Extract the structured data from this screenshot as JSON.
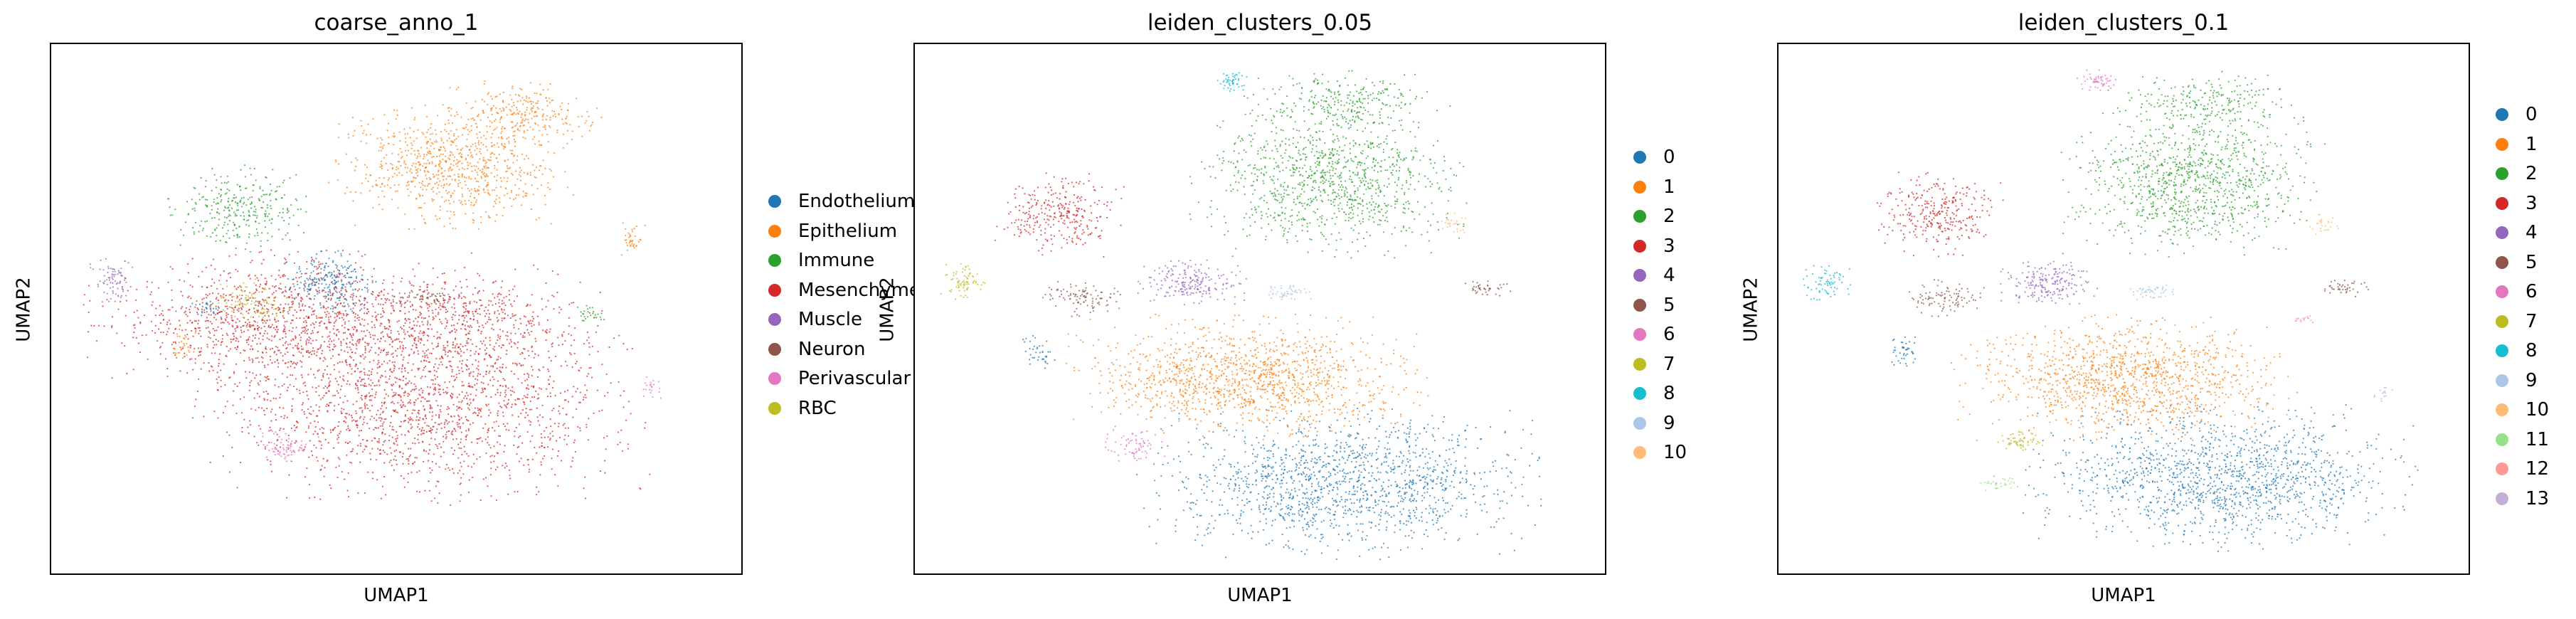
{
  "panels": [
    {
      "title": "coarse_anno_1",
      "xlabel": "UMAP1",
      "ylabel": "UMAP2",
      "legend": [
        {
          "label": "Endothelium",
          "color": "#1f77b4"
        },
        {
          "label": "Epithelium",
          "color": "#ff7f0e"
        },
        {
          "label": "Immune",
          "color": "#2ca02c"
        },
        {
          "label": "Mesenchyme",
          "color": "#d62728"
        },
        {
          "label": "Muscle",
          "color": "#9467bd"
        },
        {
          "label": "Neuron",
          "color": "#8c564b"
        },
        {
          "label": "Perivascular",
          "color": "#e377c2"
        },
        {
          "label": "RBC",
          "color": "#bcbd22"
        }
      ]
    },
    {
      "title": "leiden_clusters_0.05",
      "xlabel": "UMAP1",
      "ylabel": "UMAP2",
      "legend": [
        {
          "label": "0",
          "color": "#1f77b4"
        },
        {
          "label": "1",
          "color": "#ff7f0e"
        },
        {
          "label": "2",
          "color": "#2ca02c"
        },
        {
          "label": "3",
          "color": "#d62728"
        },
        {
          "label": "4",
          "color": "#9467bd"
        },
        {
          "label": "5",
          "color": "#8c564b"
        },
        {
          "label": "6",
          "color": "#e377c2"
        },
        {
          "label": "7",
          "color": "#bcbd22"
        },
        {
          "label": "8",
          "color": "#17becf"
        },
        {
          "label": "9",
          "color": "#aec7e8"
        },
        {
          "label": "10",
          "color": "#ffbb78"
        }
      ]
    },
    {
      "title": "leiden_clusters_0.1",
      "xlabel": "UMAP1",
      "ylabel": "UMAP2",
      "legend": [
        {
          "label": "0",
          "color": "#1f77b4"
        },
        {
          "label": "1",
          "color": "#ff7f0e"
        },
        {
          "label": "2",
          "color": "#2ca02c"
        },
        {
          "label": "3",
          "color": "#d62728"
        },
        {
          "label": "4",
          "color": "#9467bd"
        },
        {
          "label": "5",
          "color": "#8c564b"
        },
        {
          "label": "6",
          "color": "#e377c2"
        },
        {
          "label": "7",
          "color": "#bcbd22"
        },
        {
          "label": "8",
          "color": "#17becf"
        },
        {
          "label": "9",
          "color": "#aec7e8"
        },
        {
          "label": "10",
          "color": "#ffbb78"
        },
        {
          "label": "11",
          "color": "#98df8a"
        },
        {
          "label": "12",
          "color": "#ff9896"
        },
        {
          "label": "13",
          "color": "#c5b0d5"
        }
      ]
    }
  ],
  "chart_data": [
    {
      "type": "scatter",
      "title": "coarse_anno_1",
      "xlabel": "UMAP1",
      "ylabel": "UMAP2",
      "grid": false,
      "axis_ticks": false,
      "legend_position": "right-outside",
      "clusters": [
        {
          "name": "Mesenchyme",
          "color": "#d62728",
          "cx": 0.54,
          "cy": 0.32,
          "rx": 0.28,
          "ry": 0.16,
          "density": 5200
        },
        {
          "name": "Mesenchyme",
          "color": "#d62728",
          "cx": 0.33,
          "cy": 0.48,
          "rx": 0.24,
          "ry": 0.11,
          "density": 3600
        },
        {
          "name": "Mesenchyme",
          "color": "#d62728",
          "cx": 0.6,
          "cy": 0.48,
          "rx": 0.17,
          "ry": 0.09,
          "density": 1500
        },
        {
          "name": "Epithelium",
          "color": "#ff7f0e",
          "cx": 0.58,
          "cy": 0.77,
          "rx": 0.15,
          "ry": 0.1,
          "density": 2400
        },
        {
          "name": "Epithelium",
          "color": "#ff7f0e",
          "cx": 0.68,
          "cy": 0.87,
          "rx": 0.1,
          "ry": 0.05,
          "density": 700
        },
        {
          "name": "Epithelium",
          "color": "#ff7f0e",
          "cx": 0.84,
          "cy": 0.63,
          "rx": 0.02,
          "ry": 0.03,
          "density": 110
        },
        {
          "name": "Epithelium",
          "color": "#ff7f0e",
          "cx": 0.19,
          "cy": 0.43,
          "rx": 0.02,
          "ry": 0.03,
          "density": 90
        },
        {
          "name": "Immune",
          "color": "#2ca02c",
          "cx": 0.27,
          "cy": 0.69,
          "rx": 0.09,
          "ry": 0.07,
          "density": 900
        },
        {
          "name": "Immune",
          "color": "#2ca02c",
          "cx": 0.78,
          "cy": 0.49,
          "rx": 0.02,
          "ry": 0.015,
          "density": 80
        },
        {
          "name": "Endothelium",
          "color": "#1f77b4",
          "cx": 0.4,
          "cy": 0.55,
          "rx": 0.06,
          "ry": 0.05,
          "density": 700
        },
        {
          "name": "Muscle",
          "color": "#9467bd",
          "cx": 0.09,
          "cy": 0.55,
          "rx": 0.03,
          "ry": 0.04,
          "density": 220
        },
        {
          "name": "Neuron",
          "color": "#8c564b",
          "cx": 0.55,
          "cy": 0.52,
          "rx": 0.05,
          "ry": 0.015,
          "density": 200
        },
        {
          "name": "Perivascular",
          "color": "#e377c2",
          "cx": 0.34,
          "cy": 0.24,
          "rx": 0.04,
          "ry": 0.025,
          "density": 220
        },
        {
          "name": "Perivascular",
          "color": "#e377c2",
          "cx": 0.87,
          "cy": 0.35,
          "rx": 0.015,
          "ry": 0.02,
          "density": 60
        },
        {
          "name": "RBC",
          "color": "#bcbd22",
          "cx": 0.29,
          "cy": 0.51,
          "rx": 0.05,
          "ry": 0.04,
          "density": 300
        },
        {
          "name": "Endothelium",
          "color": "#1f77b4",
          "cx": 0.23,
          "cy": 0.5,
          "rx": 0.03,
          "ry": 0.015,
          "density": 80
        }
      ]
    },
    {
      "type": "scatter",
      "title": "leiden_clusters_0.05",
      "xlabel": "UMAP1",
      "ylabel": "UMAP2",
      "grid": false,
      "axis_ticks": false,
      "legend_position": "right-outside",
      "clusters": [
        {
          "name": "0",
          "color": "#1f77b4",
          "cx": 0.62,
          "cy": 0.17,
          "rx": 0.25,
          "ry": 0.12,
          "density": 4200
        },
        {
          "name": "1",
          "color": "#ff7f0e",
          "cx": 0.48,
          "cy": 0.37,
          "rx": 0.22,
          "ry": 0.1,
          "density": 3800
        },
        {
          "name": "2",
          "color": "#2ca02c",
          "cx": 0.6,
          "cy": 0.74,
          "rx": 0.17,
          "ry": 0.12,
          "density": 3000
        },
        {
          "name": "2",
          "color": "#2ca02c",
          "cx": 0.62,
          "cy": 0.89,
          "rx": 0.12,
          "ry": 0.05,
          "density": 800
        },
        {
          "name": "3",
          "color": "#d62728",
          "cx": 0.21,
          "cy": 0.68,
          "rx": 0.08,
          "ry": 0.07,
          "density": 900
        },
        {
          "name": "4",
          "color": "#9467bd",
          "cx": 0.4,
          "cy": 0.55,
          "rx": 0.07,
          "ry": 0.04,
          "density": 600
        },
        {
          "name": "5",
          "color": "#8c564b",
          "cx": 0.24,
          "cy": 0.52,
          "rx": 0.05,
          "ry": 0.03,
          "density": 300
        },
        {
          "name": "5",
          "color": "#8c564b",
          "cx": 0.83,
          "cy": 0.54,
          "rx": 0.03,
          "ry": 0.015,
          "density": 120
        },
        {
          "name": "6",
          "color": "#e377c2",
          "cx": 0.32,
          "cy": 0.24,
          "rx": 0.04,
          "ry": 0.025,
          "density": 200
        },
        {
          "name": "7",
          "color": "#bcbd22",
          "cx": 0.07,
          "cy": 0.55,
          "rx": 0.03,
          "ry": 0.03,
          "density": 220
        },
        {
          "name": "8",
          "color": "#17becf",
          "cx": 0.46,
          "cy": 0.93,
          "rx": 0.02,
          "ry": 0.02,
          "density": 150
        },
        {
          "name": "9",
          "color": "#aec7e8",
          "cx": 0.54,
          "cy": 0.53,
          "rx": 0.03,
          "ry": 0.015,
          "density": 150
        },
        {
          "name": "10",
          "color": "#ffbb78",
          "cx": 0.78,
          "cy": 0.66,
          "rx": 0.02,
          "ry": 0.02,
          "density": 80
        },
        {
          "name": "0",
          "color": "#1f77b4",
          "cx": 0.18,
          "cy": 0.42,
          "rx": 0.02,
          "ry": 0.03,
          "density": 120
        }
      ]
    },
    {
      "type": "scatter",
      "title": "leiden_clusters_0.1",
      "xlabel": "UMAP1",
      "ylabel": "UMAP2",
      "grid": false,
      "axis_ticks": false,
      "legend_position": "right-outside",
      "clusters": [
        {
          "name": "0",
          "color": "#1f77b4",
          "cx": 0.64,
          "cy": 0.18,
          "rx": 0.24,
          "ry": 0.12,
          "density": 4200
        },
        {
          "name": "1",
          "color": "#ff7f0e",
          "cx": 0.5,
          "cy": 0.37,
          "rx": 0.21,
          "ry": 0.1,
          "density": 3600
        },
        {
          "name": "2",
          "color": "#2ca02c",
          "cx": 0.6,
          "cy": 0.74,
          "rx": 0.16,
          "ry": 0.12,
          "density": 3000
        },
        {
          "name": "2",
          "color": "#2ca02c",
          "cx": 0.62,
          "cy": 0.89,
          "rx": 0.12,
          "ry": 0.05,
          "density": 700
        },
        {
          "name": "3",
          "color": "#d62728",
          "cx": 0.23,
          "cy": 0.68,
          "rx": 0.08,
          "ry": 0.07,
          "density": 900
        },
        {
          "name": "4",
          "color": "#9467bd",
          "cx": 0.39,
          "cy": 0.55,
          "rx": 0.06,
          "ry": 0.04,
          "density": 600
        },
        {
          "name": "5",
          "color": "#8c564b",
          "cx": 0.24,
          "cy": 0.52,
          "rx": 0.05,
          "ry": 0.03,
          "density": 280
        },
        {
          "name": "5",
          "color": "#8c564b",
          "cx": 0.82,
          "cy": 0.54,
          "rx": 0.03,
          "ry": 0.015,
          "density": 120
        },
        {
          "name": "6",
          "color": "#e377c2",
          "cx": 0.46,
          "cy": 0.93,
          "rx": 0.025,
          "ry": 0.02,
          "density": 160
        },
        {
          "name": "7",
          "color": "#bcbd22",
          "cx": 0.35,
          "cy": 0.25,
          "rx": 0.03,
          "ry": 0.02,
          "density": 180
        },
        {
          "name": "8",
          "color": "#17becf",
          "cx": 0.07,
          "cy": 0.55,
          "rx": 0.03,
          "ry": 0.03,
          "density": 220
        },
        {
          "name": "9",
          "color": "#aec7e8",
          "cx": 0.54,
          "cy": 0.53,
          "rx": 0.03,
          "ry": 0.015,
          "density": 150
        },
        {
          "name": "10",
          "color": "#ffbb78",
          "cx": 0.79,
          "cy": 0.66,
          "rx": 0.02,
          "ry": 0.02,
          "density": 80
        },
        {
          "name": "11",
          "color": "#98df8a",
          "cx": 0.32,
          "cy": 0.17,
          "rx": 0.025,
          "ry": 0.015,
          "density": 100
        },
        {
          "name": "12",
          "color": "#ff9896",
          "cx": 0.76,
          "cy": 0.48,
          "rx": 0.015,
          "ry": 0.01,
          "density": 50
        },
        {
          "name": "13",
          "color": "#c5b0d5",
          "cx": 0.88,
          "cy": 0.34,
          "rx": 0.015,
          "ry": 0.015,
          "density": 40
        },
        {
          "name": "0",
          "color": "#1f77b4",
          "cx": 0.18,
          "cy": 0.42,
          "rx": 0.02,
          "ry": 0.03,
          "density": 120
        }
      ]
    }
  ]
}
